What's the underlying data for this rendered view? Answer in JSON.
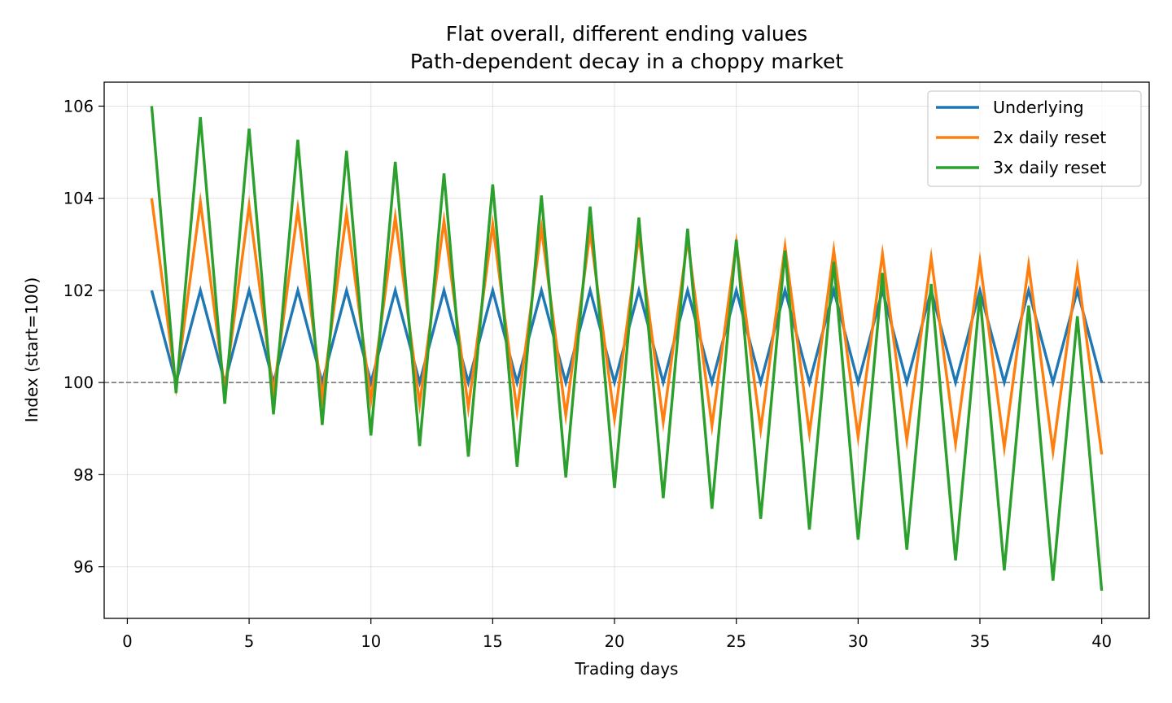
{
  "chart_data": {
    "type": "line",
    "title": "Flat overall, different ending values",
    "subtitle": "Path-dependent decay in a choppy market",
    "xlabel": "Trading days",
    "ylabel": "Index (start=100)",
    "xlim": [
      -0.95,
      41.95
    ],
    "ylim": [
      94.88,
      106.52
    ],
    "xticks": [
      0,
      5,
      10,
      15,
      20,
      25,
      30,
      35,
      40
    ],
    "yticks": [
      96,
      98,
      100,
      102,
      104,
      106
    ],
    "grid": true,
    "legend_position": "top-right",
    "reference_line": {
      "y": 100,
      "style": "dashed",
      "color": "#808080"
    },
    "x": [
      1,
      2,
      3,
      4,
      5,
      6,
      7,
      8,
      9,
      10,
      11,
      12,
      13,
      14,
      15,
      16,
      17,
      18,
      19,
      20,
      21,
      22,
      23,
      24,
      25,
      26,
      27,
      28,
      29,
      30,
      31,
      32,
      33,
      34,
      35,
      36,
      37,
      38,
      39,
      40
    ],
    "series": [
      {
        "name": "Underlying",
        "color": "#1f77b4",
        "values": [
          102.0,
          100.0,
          102.0,
          100.0,
          102.0,
          100.0,
          102.0,
          100.0,
          102.0,
          100.0,
          102.0,
          100.0,
          102.0,
          100.0,
          102.0,
          100.0,
          102.0,
          100.0,
          102.0,
          100.0,
          102.0,
          100.0,
          102.0,
          100.0,
          102.0,
          100.0,
          102.0,
          100.0,
          102.0,
          100.0,
          102.0,
          100.0,
          102.0,
          100.0,
          102.0,
          100.0,
          102.0,
          100.0,
          102.0,
          100.0
        ]
      },
      {
        "name": "2x daily reset",
        "color": "#ff7f0e",
        "values": [
          104.0,
          99.92,
          103.92,
          99.84,
          103.84,
          99.76,
          103.76,
          99.68,
          103.68,
          99.61,
          103.59,
          99.53,
          103.51,
          99.45,
          103.43,
          99.37,
          103.35,
          99.29,
          103.27,
          99.21,
          103.19,
          99.14,
          103.11,
          99.06,
          103.03,
          98.98,
          102.95,
          98.9,
          102.87,
          98.82,
          102.79,
          98.75,
          102.71,
          98.67,
          102.63,
          98.59,
          102.55,
          98.51,
          102.47,
          98.44
        ]
      },
      {
        "name": "3x daily reset",
        "color": "#2ca02c",
        "values": [
          106.0,
          99.77,
          105.76,
          99.54,
          105.51,
          99.31,
          105.27,
          99.08,
          105.03,
          98.85,
          104.79,
          98.62,
          104.54,
          98.39,
          104.3,
          98.17,
          104.06,
          97.94,
          103.82,
          97.71,
          103.58,
          97.49,
          103.34,
          97.26,
          103.1,
          97.04,
          102.86,
          96.81,
          102.62,
          96.59,
          102.38,
          96.37,
          102.14,
          96.14,
          101.91,
          95.92,
          101.67,
          95.7,
          101.44,
          95.48
        ]
      }
    ]
  }
}
